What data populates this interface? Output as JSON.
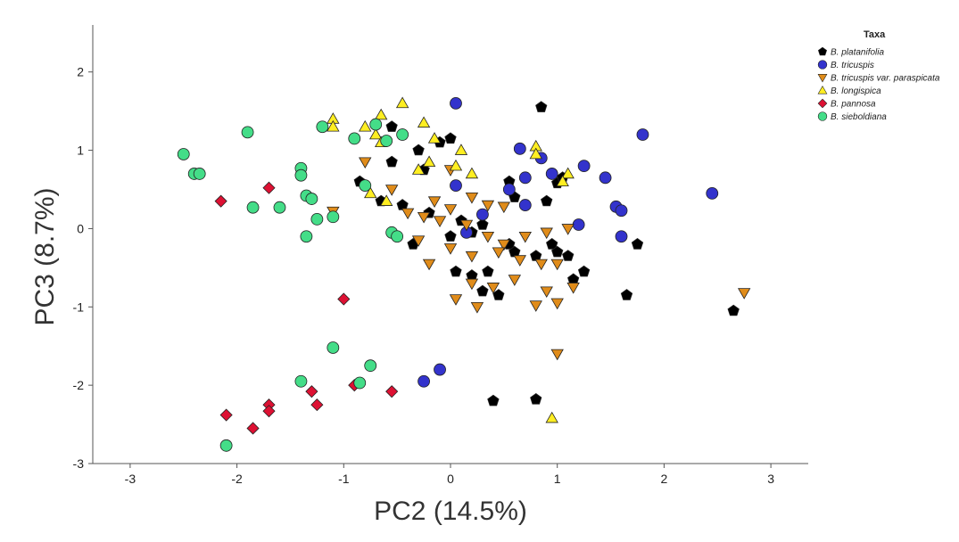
{
  "chart_data": {
    "type": "scatter",
    "xlabel": "PC2 (14.5%)",
    "ylabel": "PC3 (8.7%)",
    "xlim": [
      -3.35,
      3.35
    ],
    "ylim": [
      -3.0,
      2.6
    ],
    "xticks": [
      -3,
      -2,
      -1,
      0,
      1,
      2,
      3
    ],
    "yticks": [
      2,
      1,
      0,
      -1,
      -2,
      -3
    ],
    "grid": false,
    "legend": {
      "title": "Taxa",
      "placement": "top-right"
    },
    "series": [
      {
        "name": "B. platanifolia",
        "marker": "pentagon",
        "color": "#000000",
        "points": [
          [
            -0.55,
            1.3
          ],
          [
            -0.45,
            1.2
          ],
          [
            -0.3,
            1.0
          ],
          [
            -0.25,
            0.75
          ],
          [
            -0.55,
            0.85
          ],
          [
            0.85,
            1.55
          ],
          [
            -0.85,
            0.6
          ],
          [
            -0.65,
            0.35
          ],
          [
            -0.45,
            0.3
          ],
          [
            -0.2,
            0.2
          ],
          [
            0.1,
            0.1
          ],
          [
            0.3,
            0.05
          ],
          [
            0.55,
            0.6
          ],
          [
            0.6,
            0.4
          ],
          [
            0.9,
            0.35
          ],
          [
            1.0,
            0.58
          ],
          [
            1.05,
            0.65
          ],
          [
            -0.35,
            -0.2
          ],
          [
            0.0,
            -0.1
          ],
          [
            0.2,
            -0.05
          ],
          [
            0.55,
            -0.2
          ],
          [
            0.6,
            -0.3
          ],
          [
            0.8,
            -0.35
          ],
          [
            0.95,
            -0.2
          ],
          [
            1.0,
            -0.3
          ],
          [
            1.1,
            -0.35
          ],
          [
            0.05,
            -0.55
          ],
          [
            0.2,
            -0.6
          ],
          [
            0.35,
            -0.55
          ],
          [
            0.45,
            -0.85
          ],
          [
            0.3,
            -0.8
          ],
          [
            1.15,
            -0.65
          ],
          [
            1.25,
            -0.55
          ],
          [
            1.65,
            -0.85
          ],
          [
            1.75,
            -0.2
          ],
          [
            2.65,
            -1.05
          ],
          [
            0.4,
            -2.2
          ],
          [
            0.8,
            -2.18
          ],
          [
            0.0,
            1.15
          ],
          [
            -0.1,
            1.1
          ]
        ]
      },
      {
        "name": "B. tricuspis",
        "marker": "circle",
        "color": "#3333cc",
        "points": [
          [
            0.05,
            1.6
          ],
          [
            0.65,
            1.02
          ],
          [
            0.85,
            0.9
          ],
          [
            1.25,
            0.8
          ],
          [
            1.8,
            1.2
          ],
          [
            0.7,
            0.65
          ],
          [
            0.95,
            0.7
          ],
          [
            1.45,
            0.65
          ],
          [
            0.05,
            0.55
          ],
          [
            0.55,
            0.5
          ],
          [
            0.7,
            0.3
          ],
          [
            1.55,
            0.28
          ],
          [
            1.6,
            0.23
          ],
          [
            2.45,
            0.45
          ],
          [
            0.3,
            0.18
          ],
          [
            1.2,
            0.05
          ],
          [
            0.15,
            -0.05
          ],
          [
            1.6,
            -0.1
          ],
          [
            -0.1,
            -1.8
          ],
          [
            -0.25,
            -1.95
          ]
        ]
      },
      {
        "name": "B. tricuspis var. paraspicata",
        "marker": "triangle-down",
        "color": "#e08c1a",
        "points": [
          [
            -0.8,
            0.85
          ],
          [
            -0.55,
            0.5
          ],
          [
            -0.4,
            0.2
          ],
          [
            -0.15,
            0.35
          ],
          [
            0.0,
            0.25
          ],
          [
            0.2,
            0.4
          ],
          [
            0.35,
            0.3
          ],
          [
            0.5,
            0.28
          ],
          [
            -0.25,
            0.15
          ],
          [
            -0.1,
            0.1
          ],
          [
            0.15,
            0.05
          ],
          [
            0.35,
            -0.1
          ],
          [
            0.5,
            -0.2
          ],
          [
            0.7,
            -0.1
          ],
          [
            0.9,
            -0.05
          ],
          [
            1.1,
            0.0
          ],
          [
            -0.3,
            -0.15
          ],
          [
            0.0,
            -0.25
          ],
          [
            0.2,
            -0.35
          ],
          [
            0.45,
            -0.3
          ],
          [
            0.65,
            -0.4
          ],
          [
            0.85,
            -0.45
          ],
          [
            1.0,
            -0.45
          ],
          [
            -0.2,
            -0.45
          ],
          [
            0.2,
            -0.7
          ],
          [
            0.4,
            -0.75
          ],
          [
            0.6,
            -0.65
          ],
          [
            0.9,
            -0.8
          ],
          [
            1.15,
            -0.75
          ],
          [
            0.05,
            -0.9
          ],
          [
            0.25,
            -1.0
          ],
          [
            0.8,
            -0.98
          ],
          [
            1.0,
            -0.95
          ],
          [
            1.0,
            -1.6
          ],
          [
            2.75,
            -0.82
          ],
          [
            -1.1,
            0.22
          ],
          [
            0.0,
            0.75
          ]
        ]
      },
      {
        "name": "B. longispica",
        "marker": "triangle-up",
        "color": "#ffee22",
        "points": [
          [
            -1.1,
            1.4
          ],
          [
            -1.1,
            1.3
          ],
          [
            -0.8,
            1.3
          ],
          [
            -0.65,
            1.45
          ],
          [
            -0.7,
            1.2
          ],
          [
            -0.45,
            1.6
          ],
          [
            -0.25,
            1.35
          ],
          [
            -0.15,
            1.15
          ],
          [
            -0.2,
            0.85
          ],
          [
            -0.3,
            0.75
          ],
          [
            0.05,
            0.8
          ],
          [
            0.1,
            1.0
          ],
          [
            0.2,
            0.7
          ],
          [
            0.8,
            1.05
          ],
          [
            0.8,
            0.95
          ],
          [
            1.1,
            0.7
          ],
          [
            1.05,
            0.6
          ],
          [
            -0.75,
            0.45
          ],
          [
            -0.6,
            0.35
          ],
          [
            0.95,
            -2.42
          ],
          [
            -0.65,
            1.1
          ]
        ]
      },
      {
        "name": "B. pannosa",
        "marker": "diamond",
        "color": "#dd1133",
        "points": [
          [
            -2.15,
            0.35
          ],
          [
            -1.7,
            0.52
          ],
          [
            -1.0,
            -0.9
          ],
          [
            -2.1,
            -2.38
          ],
          [
            -1.85,
            -2.55
          ],
          [
            -1.7,
            -2.25
          ],
          [
            -1.7,
            -2.33
          ],
          [
            -1.3,
            -2.08
          ],
          [
            -1.25,
            -2.25
          ],
          [
            -0.9,
            -2.0
          ],
          [
            -0.55,
            -2.08
          ]
        ]
      },
      {
        "name": "B. sieboldiana",
        "marker": "circle",
        "color": "#44dd88",
        "points": [
          [
            -2.5,
            0.95
          ],
          [
            -2.4,
            0.7
          ],
          [
            -2.35,
            0.7
          ],
          [
            -1.9,
            1.23
          ],
          [
            -1.85,
            0.27
          ],
          [
            -1.6,
            0.27
          ],
          [
            -1.4,
            0.77
          ],
          [
            -1.4,
            0.68
          ],
          [
            -1.35,
            0.42
          ],
          [
            -1.3,
            0.38
          ],
          [
            -1.25,
            0.12
          ],
          [
            -1.1,
            0.15
          ],
          [
            -1.35,
            -0.1
          ],
          [
            -1.2,
            1.3
          ],
          [
            -0.9,
            1.15
          ],
          [
            -0.7,
            1.33
          ],
          [
            -0.6,
            1.12
          ],
          [
            -0.45,
            1.2
          ],
          [
            -0.8,
            0.55
          ],
          [
            -0.55,
            -0.05
          ],
          [
            -0.5,
            -0.1
          ],
          [
            -1.1,
            -1.52
          ],
          [
            -0.75,
            -1.75
          ],
          [
            -0.85,
            -1.97
          ],
          [
            -1.4,
            -1.95
          ],
          [
            -2.1,
            -2.77
          ]
        ]
      }
    ]
  }
}
